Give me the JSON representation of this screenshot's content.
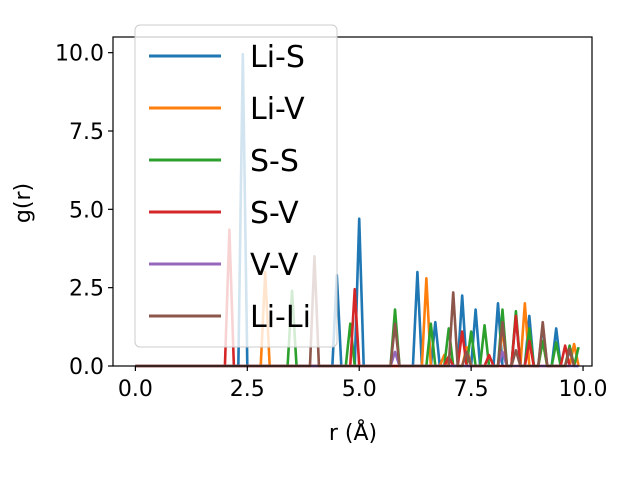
{
  "chart_data": {
    "type": "line",
    "xlabel": "r (Å)",
    "ylabel": "g(r)",
    "xlim": [
      -0.5,
      10.2
    ],
    "ylim": [
      0,
      10.5
    ],
    "x_ticks": [
      "0.0",
      "2.5",
      "5.0",
      "7.5",
      "10.0"
    ],
    "x_tick_values": [
      0,
      2.5,
      5,
      7.5,
      10
    ],
    "y_ticks": [
      "0.0",
      "2.5",
      "5.0",
      "7.5",
      "10.0"
    ],
    "y_tick_values": [
      0,
      2.5,
      5,
      7.5,
      10
    ],
    "grid": false,
    "legend_position": "upper-left",
    "series": [
      {
        "name": "Li-S",
        "color": "#1f77b4",
        "x": [
          0.0,
          2.3,
          2.4,
          2.5,
          4.4,
          4.5,
          4.6,
          4.9,
          5.0,
          5.1,
          6.2,
          6.3,
          6.4,
          6.6,
          6.7,
          6.8,
          7.2,
          7.3,
          7.4,
          7.5,
          7.6,
          7.7,
          8.0,
          8.1,
          8.2,
          8.4,
          8.5,
          8.6,
          8.7,
          8.8,
          8.9,
          9.0,
          9.1,
          9.2,
          9.3,
          9.4,
          9.5,
          9.6,
          9.7,
          9.8,
          9.9
        ],
        "y": [
          0,
          0,
          9.95,
          0,
          0,
          2.9,
          0,
          0,
          4.7,
          0,
          0,
          3.0,
          0,
          0,
          1.4,
          0,
          0,
          2.25,
          0,
          0,
          1.8,
          0,
          0,
          2.0,
          0,
          0,
          1.6,
          0,
          0,
          1.6,
          0,
          0,
          1.3,
          0,
          0,
          1.2,
          0,
          0,
          0.5,
          0,
          0
        ]
      },
      {
        "name": "Li-V",
        "color": "#ff7f0e",
        "x": [
          0.0,
          2.8,
          2.9,
          3.0,
          6.4,
          6.5,
          6.6,
          6.8,
          6.9,
          7.0,
          7.3,
          7.4,
          7.5,
          8.1,
          8.2,
          8.3,
          8.6,
          8.7,
          8.8,
          9.0,
          9.1,
          9.2,
          9.7,
          9.8,
          9.9
        ],
        "y": [
          0,
          0,
          3.0,
          0,
          0,
          2.8,
          0,
          0,
          0.35,
          0,
          0,
          0.6,
          0,
          0,
          1.15,
          0,
          0,
          2.0,
          0,
          0,
          0.8,
          0,
          0,
          0.7,
          0
        ]
      },
      {
        "name": "S-S",
        "color": "#2ca02c",
        "x": [
          0.0,
          3.4,
          3.5,
          3.6,
          4.7,
          4.8,
          4.9,
          5.7,
          5.8,
          5.9,
          6.5,
          6.6,
          6.7,
          6.9,
          7.0,
          7.1,
          7.4,
          7.5,
          7.6,
          7.7,
          7.8,
          7.9,
          8.1,
          8.2,
          8.3,
          8.4,
          8.5,
          8.6,
          8.7,
          8.8,
          8.9,
          9.0,
          9.1,
          9.2,
          9.3,
          9.4,
          9.5,
          9.6,
          9.7,
          9.8,
          9.9
        ],
        "y": [
          0,
          0,
          2.4,
          0,
          0,
          1.35,
          0,
          0,
          1.8,
          0,
          0,
          1.35,
          0,
          0,
          1.2,
          0,
          0,
          1.1,
          0,
          0,
          1.3,
          0,
          0,
          1.8,
          0,
          0,
          1.75,
          0,
          0,
          1.2,
          0,
          0,
          0.8,
          0,
          0,
          0.75,
          0,
          0,
          0.65,
          0,
          0.6
        ]
      },
      {
        "name": "S-V",
        "color": "#d62728",
        "x": [
          0.0,
          2.0,
          2.1,
          2.2,
          4.8,
          4.9,
          5.0,
          6.9,
          7.0,
          7.1,
          7.2,
          7.3,
          7.4,
          7.8,
          7.9,
          8.0,
          8.4,
          8.5,
          8.6,
          8.7,
          8.8,
          8.9,
          9.5,
          9.6,
          9.7
        ],
        "y": [
          0,
          0,
          4.35,
          0,
          0,
          2.45,
          0,
          0,
          0.3,
          0,
          0,
          1.1,
          0,
          0,
          0.35,
          0,
          0,
          1.6,
          0,
          0,
          0.8,
          0,
          0,
          0.65,
          0
        ]
      },
      {
        "name": "V-V",
        "color": "#9467bd",
        "x": [
          0.0,
          5.7,
          5.8,
          5.9,
          8.1,
          8.2,
          8.3,
          9.9
        ],
        "y": [
          0,
          0,
          0.45,
          0,
          0,
          0.45,
          0,
          0
        ]
      },
      {
        "name": "Li-Li",
        "color": "#8c564b",
        "x": [
          0.0,
          3.9,
          4.0,
          4.1,
          5.7,
          5.8,
          5.9,
          7.0,
          7.1,
          7.2,
          7.3,
          7.4,
          7.5,
          8.1,
          8.2,
          8.3,
          8.4,
          8.5,
          8.6,
          9.0,
          9.1,
          9.2,
          9.6,
          9.7,
          9.8
        ],
        "y": [
          0,
          0,
          3.5,
          0,
          0,
          1.35,
          0,
          0,
          2.35,
          0,
          0,
          0.45,
          0,
          0,
          1.4,
          0,
          0,
          0.5,
          0,
          0,
          1.4,
          0,
          0,
          0.55,
          0
        ]
      }
    ]
  }
}
